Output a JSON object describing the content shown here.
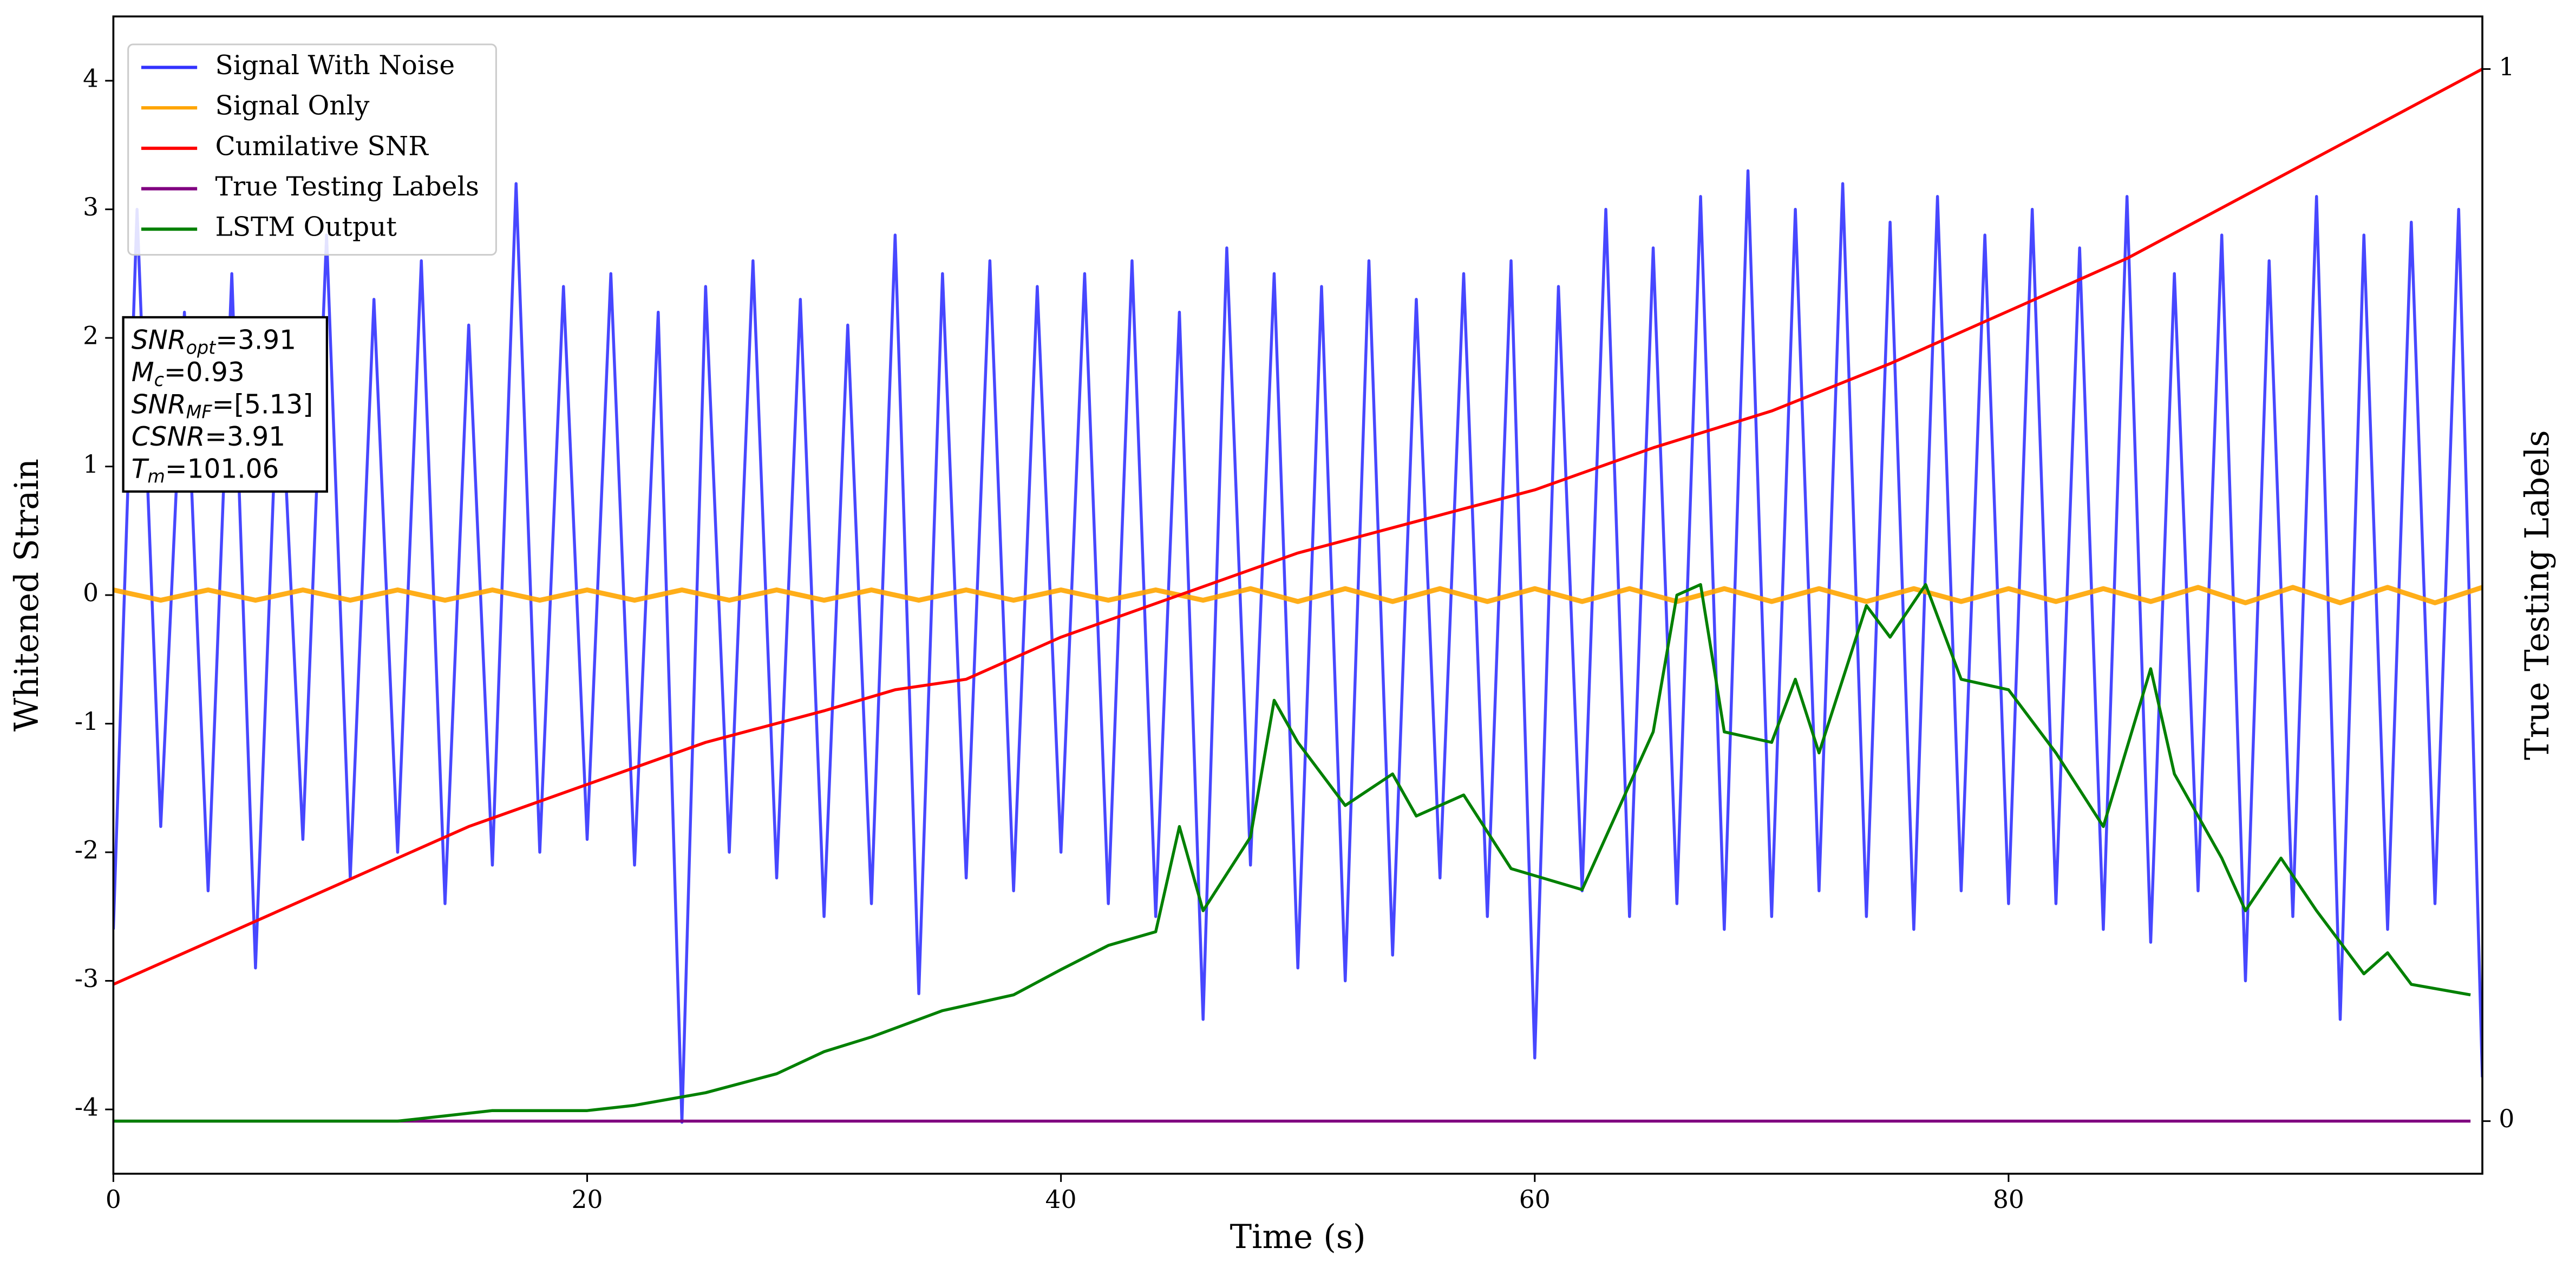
{
  "chart_data": {
    "type": "line",
    "xlabel": "Time (s)",
    "ylabel": "Whitened Strain",
    "y2label": "True Testing Labels",
    "xlim": [
      0,
      100
    ],
    "ylim": [
      -4.5,
      4.5
    ],
    "y2lim": [
      -0.05,
      1.05
    ],
    "xticks": [
      0,
      20,
      40,
      60,
      80
    ],
    "yticks": [
      -4,
      -3,
      -2,
      -1,
      0,
      1,
      2,
      3,
      4
    ],
    "y2ticks": [
      0,
      1
    ],
    "legend": "upper left",
    "annotation": [
      {
        "base": "SNR",
        "sub": "opt",
        "text": "=3.91"
      },
      {
        "base": "M",
        "sub": "c",
        "text": "=0.93"
      },
      {
        "base": "SNR",
        "sub": "MF",
        "text": "=[5.13]"
      },
      {
        "base": "CSNR",
        "text": "=3.91"
      },
      {
        "base": "T",
        "sub": "m",
        "text": "=101.06"
      }
    ],
    "series": [
      {
        "name": "Signal With Noise",
        "color": "#3333ff",
        "axis": "y",
        "x": [
          0,
          1,
          2,
          3,
          4,
          5,
          6,
          7,
          8,
          9,
          10,
          11,
          12,
          13,
          14,
          15,
          16,
          17,
          18,
          19,
          20,
          21,
          22,
          23,
          24,
          25,
          26,
          27,
          28,
          29,
          30,
          31,
          32,
          33,
          34,
          35,
          36,
          37,
          38,
          39,
          40,
          41,
          42,
          43,
          44,
          45,
          46,
          47,
          48,
          49,
          50,
          51,
          52,
          53,
          54,
          55,
          56,
          57,
          58,
          59,
          60,
          61,
          62,
          63,
          64,
          65,
          66,
          67,
          68,
          69,
          70,
          71,
          72,
          73,
          74,
          75,
          76,
          77,
          78,
          79,
          80,
          81,
          82,
          83,
          84,
          85,
          86,
          87,
          88,
          89,
          90,
          91,
          92,
          93,
          94,
          95,
          96,
          97,
          98,
          99,
          100
        ],
        "values": [
          -2.6,
          3.0,
          -1.8,
          2.2,
          -2.3,
          2.5,
          -2.9,
          2.0,
          -1.9,
          2.8,
          -2.2,
          2.3,
          -2.0,
          2.6,
          -2.4,
          2.1,
          -2.1,
          3.2,
          -2.0,
          2.4,
          -1.9,
          2.5,
          -2.1,
          2.2,
          -4.1,
          2.4,
          -2.0,
          2.6,
          -2.2,
          2.3,
          -2.5,
          2.1,
          -2.4,
          2.8,
          -3.1,
          2.5,
          -2.2,
          2.6,
          -2.3,
          2.4,
          -2.0,
          2.5,
          -2.4,
          2.6,
          -2.5,
          2.2,
          -3.3,
          2.7,
          -2.1,
          2.5,
          -2.9,
          2.4,
          -3.0,
          2.6,
          -2.8,
          2.3,
          -2.2,
          2.5,
          -2.5,
          2.6,
          -3.6,
          2.4,
          -2.3,
          3.0,
          -2.5,
          2.7,
          -2.4,
          3.1,
          -2.6,
          3.3,
          -2.5,
          3.0,
          -2.3,
          3.2,
          -2.5,
          2.9,
          -2.6,
          3.1,
          -2.3,
          2.8,
          -2.4,
          3.0,
          -2.4,
          2.7,
          -2.6,
          3.1,
          -2.7,
          2.5,
          -2.3,
          2.8,
          -3.0,
          2.6,
          -2.5,
          3.1,
          -3.3,
          2.8,
          -2.6,
          2.9,
          -2.4,
          3.0,
          -3.75
        ]
      },
      {
        "name": "Signal Only",
        "color": "#ffa500",
        "axis": "y",
        "x": [
          0,
          2,
          4,
          6,
          8,
          10,
          12,
          14,
          16,
          18,
          20,
          22,
          24,
          26,
          28,
          30,
          32,
          34,
          36,
          38,
          40,
          42,
          44,
          46,
          48,
          50,
          52,
          54,
          56,
          58,
          60,
          62,
          64,
          66,
          68,
          70,
          72,
          74,
          76,
          78,
          80,
          82,
          84,
          86,
          88,
          90,
          92,
          94,
          96,
          98,
          100
        ],
        "values": [
          0.04,
          -0.04,
          0.04,
          -0.04,
          0.04,
          -0.04,
          0.04,
          -0.04,
          0.04,
          -0.04,
          0.04,
          -0.04,
          0.04,
          -0.04,
          0.04,
          -0.04,
          0.04,
          -0.04,
          0.04,
          -0.04,
          0.04,
          -0.04,
          0.04,
          -0.04,
          0.05,
          -0.05,
          0.05,
          -0.05,
          0.05,
          -0.05,
          0.05,
          -0.05,
          0.05,
          -0.05,
          0.05,
          -0.05,
          0.05,
          -0.05,
          0.05,
          -0.05,
          0.05,
          -0.05,
          0.05,
          -0.05,
          0.06,
          -0.06,
          0.06,
          -0.06,
          0.06,
          -0.06,
          0.06
        ]
      },
      {
        "name": "Cumilative SNR",
        "color": "#ff0000",
        "axis": "y2",
        "x": [
          0,
          5,
          10,
          15,
          20,
          25,
          30,
          33,
          36,
          40,
          45,
          50,
          55,
          60,
          65,
          70,
          75,
          80,
          85,
          90,
          95,
          100
        ],
        "values": [
          0.13,
          0.18,
          0.23,
          0.28,
          0.32,
          0.36,
          0.39,
          0.41,
          0.42,
          0.46,
          0.5,
          0.54,
          0.57,
          0.6,
          0.64,
          0.675,
          0.72,
          0.77,
          0.82,
          0.88,
          0.94,
          1.0
        ]
      },
      {
        "name": "True Testing Labels",
        "color": "#800080",
        "axis": "y2",
        "x": [
          0,
          99.5
        ],
        "values": [
          0,
          0
        ]
      },
      {
        "name": "LSTM Output",
        "color": "#008000",
        "axis": "y2",
        "x": [
          0,
          12,
          16,
          20,
          22,
          25,
          28,
          30,
          32,
          35,
          38,
          40,
          42,
          44,
          45,
          46,
          48,
          49,
          50,
          52,
          54,
          55,
          57,
          59,
          62,
          63,
          65,
          66,
          67,
          68,
          70,
          71,
          72,
          74,
          75,
          76.5,
          78,
          80,
          82,
          84,
          86,
          87,
          89,
          90,
          91.5,
          93,
          95,
          96,
          97,
          99.5
        ],
        "values": [
          0,
          0,
          0.01,
          0.01,
          0.015,
          0.027,
          0.045,
          0.066,
          0.08,
          0.105,
          0.12,
          0.144,
          0.167,
          0.18,
          0.28,
          0.2,
          0.27,
          0.4,
          0.36,
          0.3,
          0.33,
          0.29,
          0.31,
          0.24,
          0.22,
          0.27,
          0.37,
          0.5,
          0.51,
          0.37,
          0.36,
          0.42,
          0.35,
          0.49,
          0.46,
          0.51,
          0.42,
          0.41,
          0.35,
          0.28,
          0.43,
          0.33,
          0.25,
          0.2,
          0.25,
          0.2,
          0.14,
          0.16,
          0.13,
          0.12
        ]
      }
    ]
  }
}
